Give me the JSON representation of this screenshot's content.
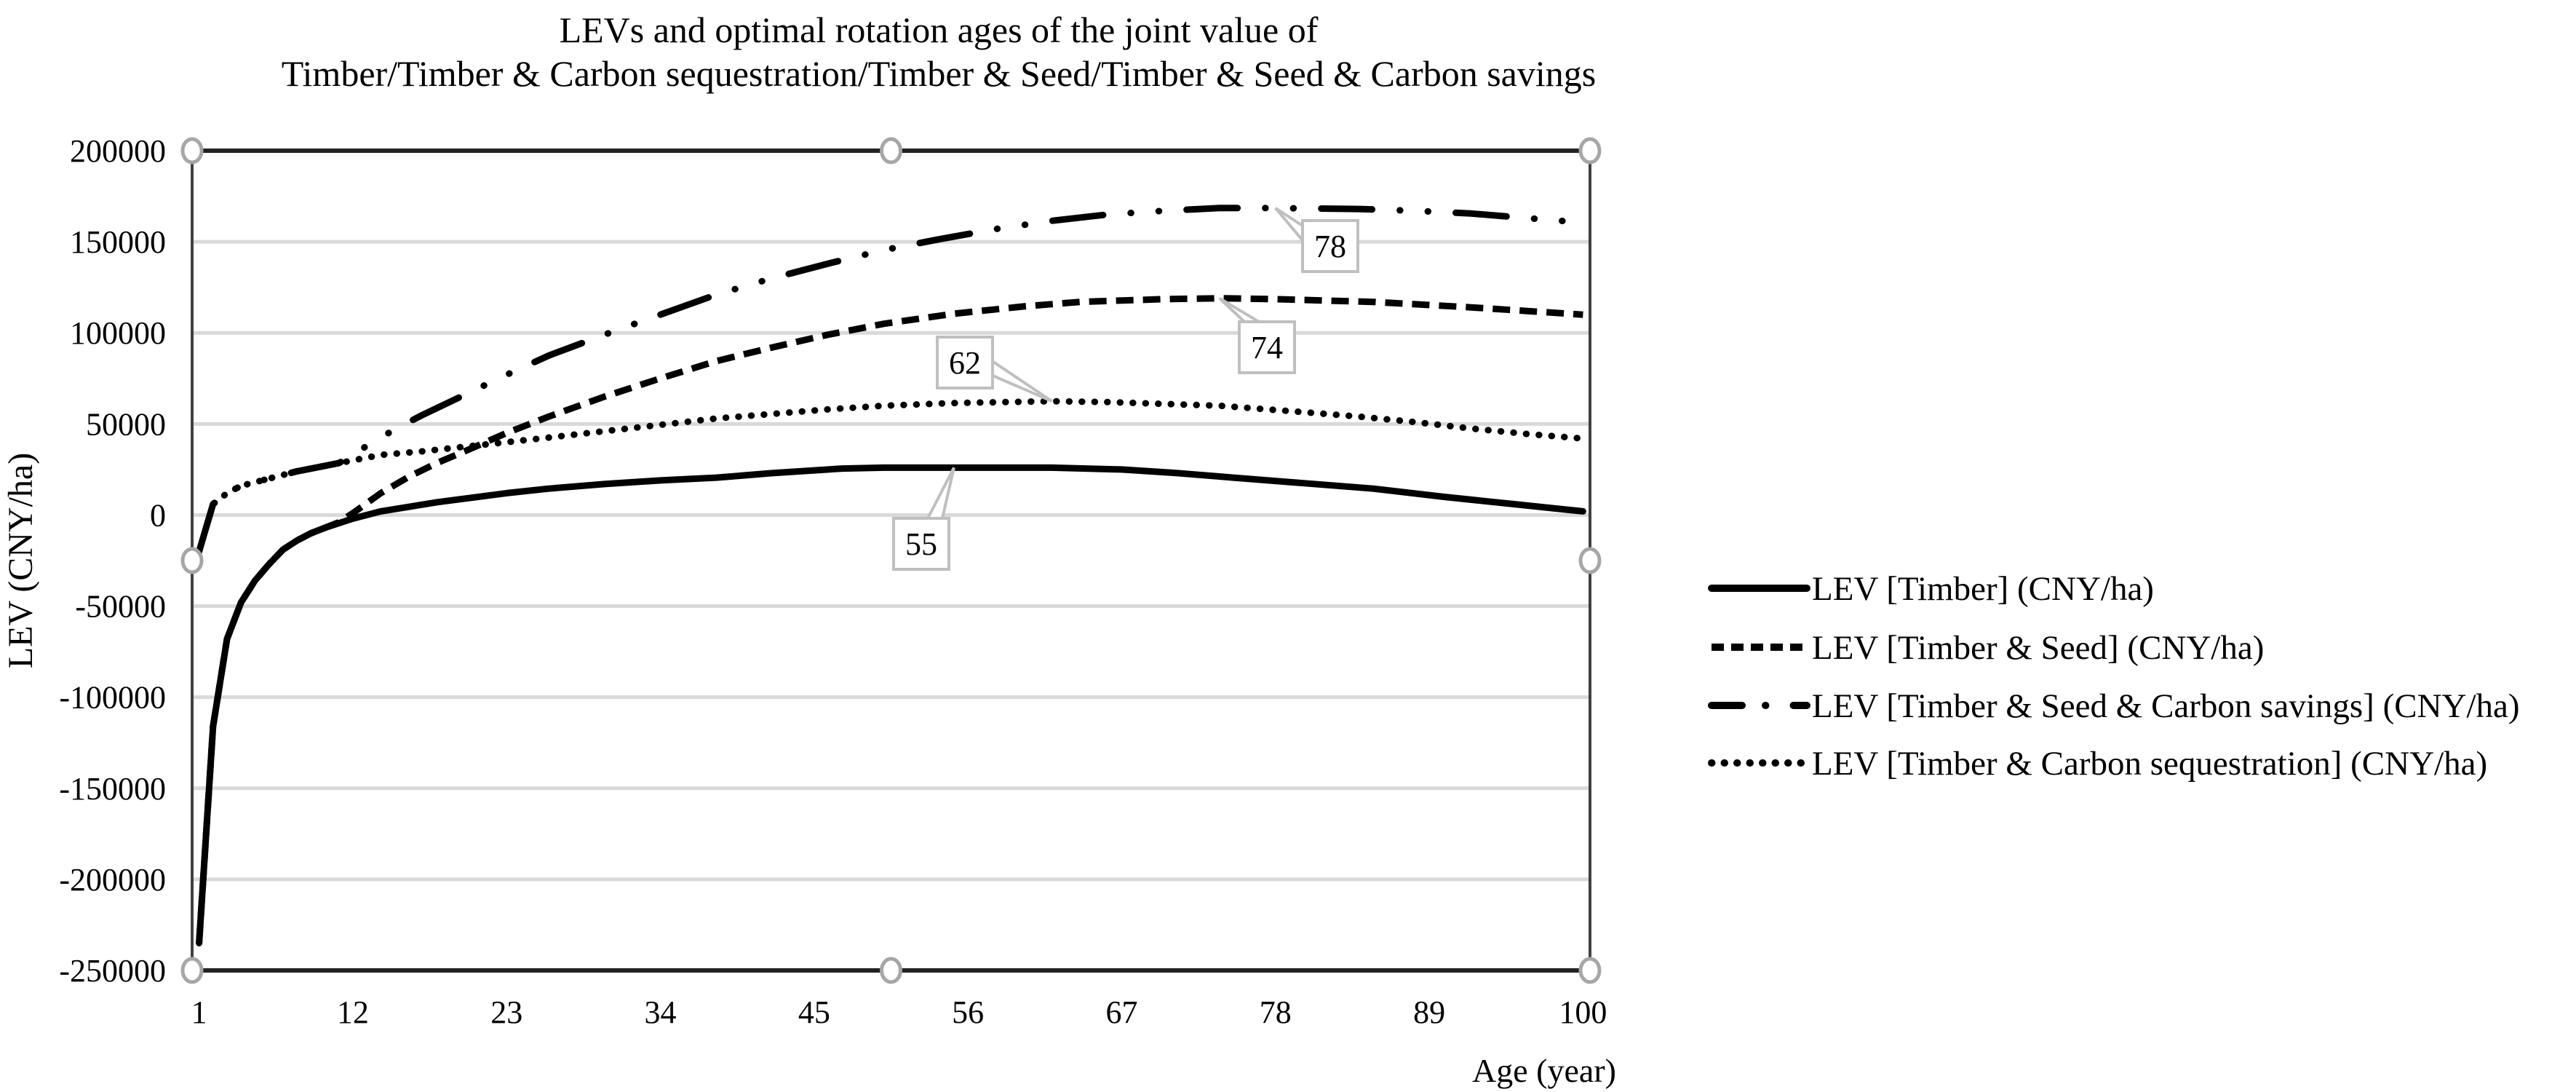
{
  "chart_data": {
    "type": "line",
    "title_lines": [
      "LEVs and optimal rotation ages of the joint value of",
      "Timber/Timber & Carbon sequestration/Timber & Seed/Timber & Seed & Carbon savings"
    ],
    "xlabel": "Age (year)",
    "ylabel": "LEV (CNY/ha)",
    "x_range": [
      1,
      100
    ],
    "x_tick_labels": [
      "1",
      "12",
      "23",
      "34",
      "45",
      "56",
      "67",
      "78",
      "89",
      "100"
    ],
    "ylim": [
      -250000,
      200000
    ],
    "y_tick_labels": [
      "200000",
      "150000",
      "100000",
      "50000",
      "0",
      "-50000",
      "-100000",
      "-150000",
      "-200000",
      "-250000"
    ],
    "y_ticks": [
      200000,
      150000,
      100000,
      50000,
      0,
      -50000,
      -100000,
      -150000,
      -200000,
      -250000
    ],
    "grid": "horizontal",
    "legend_position": "right",
    "series": [
      {
        "name": "LEV [Timber] (CNY/ha)",
        "style": "solid",
        "x": [
          1,
          2,
          3,
          4,
          5,
          6,
          7,
          8,
          9,
          10,
          12,
          14,
          16,
          18,
          20,
          23,
          26,
          30,
          34,
          38,
          42,
          47,
          50,
          55,
          62,
          67,
          71,
          75,
          80,
          85,
          90,
          95,
          100
        ],
        "values": [
          -235000,
          -116000,
          -68000,
          -48000,
          -36000,
          -27000,
          -19000,
          -14000,
          -10000,
          -7000,
          -2000,
          2000,
          4500,
          7000,
          9000,
          12000,
          14500,
          17000,
          19000,
          20500,
          23000,
          25500,
          26000,
          26000,
          26000,
          25000,
          23000,
          20500,
          17500,
          14500,
          10000,
          6000,
          2000
        ]
      },
      {
        "name": "LEV [Timber & Seed] (CNY/ha)",
        "style": "dashed",
        "x": [
          1,
          2,
          3,
          4,
          5,
          6,
          7,
          8,
          9,
          10,
          11,
          12,
          14,
          16,
          18,
          20,
          23,
          26,
          30,
          34,
          38,
          42,
          46,
          50,
          55,
          60,
          64,
          70,
          74,
          78,
          85,
          92,
          96,
          100
        ],
        "values": [
          -235000,
          -116000,
          -68000,
          -48000,
          -36000,
          -27000,
          -19000,
          -14000,
          -10000,
          -7000,
          -4000,
          1000,
          12000,
          21000,
          28500,
          35000,
          45000,
          54000,
          65000,
          75000,
          84500,
          92000,
          99000,
          105000,
          110500,
          114500,
          117000,
          118500,
          119000,
          118500,
          117000,
          114000,
          112000,
          110000
        ]
      },
      {
        "name": "LEV [Timber & Seed & Carbon savings] (CNY/ha)",
        "style": "dash-dot-dot",
        "x": [
          1,
          2,
          3,
          4,
          5,
          6,
          8,
          10,
          11,
          12,
          13,
          15,
          17,
          20,
          23,
          26,
          30,
          34,
          38,
          42,
          46,
          50,
          54,
          58,
          62,
          66,
          70,
          74,
          78,
          84,
          88,
          92,
          96,
          100
        ],
        "values": [
          -20000,
          6000,
          12000,
          16000,
          18000,
          20000,
          24000,
          27000,
          28500,
          33000,
          38000,
          47000,
          55000,
          66000,
          77000,
          87500,
          99000,
          110000,
          121000,
          130000,
          138000,
          145500,
          151500,
          157000,
          161500,
          165000,
          167000,
          168500,
          168500,
          168000,
          167000,
          165500,
          163000,
          160500
        ]
      },
      {
        "name": "LEV [Timber & Carbon sequestration] (CNY/ha)",
        "style": "dotted",
        "x": [
          1,
          2,
          3,
          4,
          5,
          6,
          8,
          10,
          12,
          14,
          17,
          20,
          23,
          26,
          30,
          34,
          38,
          42,
          46,
          50,
          55,
          62,
          66,
          70,
          74,
          80,
          84,
          88,
          92,
          96,
          100
        ],
        "values": [
          -20000,
          6000,
          12000,
          16000,
          18000,
          20000,
          24000,
          27000,
          30000,
          33000,
          35000,
          37500,
          40000,
          42500,
          46000,
          49500,
          53000,
          55500,
          58000,
          60000,
          61500,
          62500,
          62000,
          61000,
          60000,
          56500,
          54000,
          51000,
          47500,
          44500,
          42000
        ]
      }
    ],
    "annotations": [
      {
        "series": "LEV [Timber] (CNY/ha)",
        "age": 55,
        "value": 26000,
        "label": "55"
      },
      {
        "series": "LEV [Timber & Carbon sequestration] (CNY/ha)",
        "age": 62,
        "value": 62500,
        "label": "62"
      },
      {
        "series": "LEV [Timber & Seed] (CNY/ha)",
        "age": 74,
        "value": 119000,
        "label": "74"
      },
      {
        "series": "LEV [Timber & Seed & Carbon savings] (CNY/ha)",
        "age": 78,
        "value": 168500,
        "label": "78"
      }
    ],
    "colors": {
      "line": "#000000",
      "grid": "#d9d9d9",
      "label_border": "#bfbfbf",
      "handle": "#a6a6a6"
    }
  }
}
